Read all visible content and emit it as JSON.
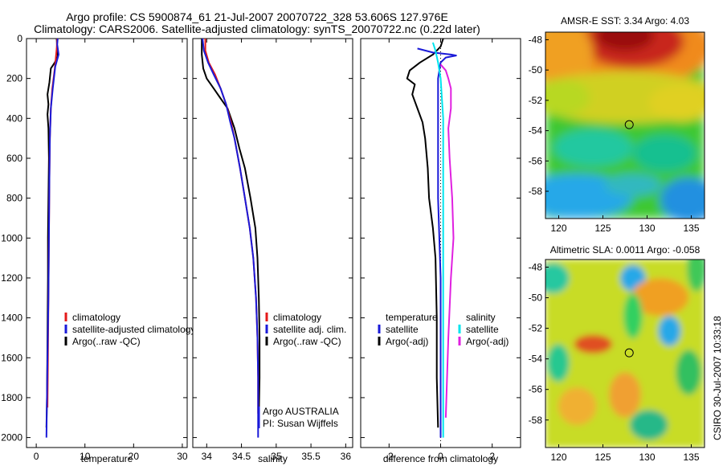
{
  "title": {
    "line1": "Argo profile: CS 5900874_61 21-Jul-2007 20070722_328 53.606S 127.976E",
    "line2": "Climatology: CARS2006. Satellite-adjusted climatology: synTS_20070722.nc (0.22d later)"
  },
  "credit": "CSIRO 30-Jul-2007 10:33:18",
  "chart_data": [
    {
      "type": "line",
      "xlabel": "temperature",
      "ylabel": "",
      "xlim": [
        -2,
        31
      ],
      "ylim": [
        2050,
        0
      ],
      "y_reversed": true,
      "xticks": [
        0,
        10,
        20,
        30
      ],
      "yticks": [
        0,
        200,
        400,
        600,
        800,
        1000,
        1200,
        1400,
        1600,
        1800,
        2000
      ],
      "legend": [
        {
          "label": "climatology",
          "color": "#e41a1a"
        },
        {
          "label": "satellite-adjusted climatology",
          "color": "#1a1ad8"
        },
        {
          "label": "Argo(..raw -QC)",
          "color": "#000000"
        }
      ],
      "legend_position": "lower-right",
      "series": [
        {
          "name": "Argo(..raw -QC)",
          "color": "#000000",
          "points": [
            [
              4.2,
              0
            ],
            [
              4.3,
              50
            ],
            [
              4.4,
              90
            ],
            [
              3.8,
              120
            ],
            [
              3.0,
              150
            ],
            [
              2.7,
              220
            ],
            [
              2.3,
              280
            ],
            [
              2.5,
              330
            ],
            [
              2.3,
              380
            ],
            [
              2.5,
              450
            ],
            [
              2.6,
              600
            ],
            [
              2.5,
              800
            ],
            [
              2.4,
              1000
            ],
            [
              2.4,
              1200
            ],
            [
              2.3,
              1500
            ],
            [
              2.2,
              1800
            ],
            [
              2.1,
              1950
            ]
          ]
        },
        {
          "name": "climatology",
          "color": "#e41a1a",
          "points": [
            [
              4.3,
              0
            ],
            [
              4.2,
              50
            ],
            [
              4.0,
              100
            ],
            [
              3.8,
              150
            ],
            [
              3.3,
              250
            ],
            [
              3.0,
              350
            ],
            [
              2.8,
              500
            ],
            [
              2.7,
              700
            ],
            [
              2.6,
              1000
            ],
            [
              2.5,
              1300
            ],
            [
              2.4,
              1600
            ],
            [
              2.3,
              1850
            ]
          ]
        },
        {
          "name": "satellite-adjusted climatology",
          "color": "#1a1ad8",
          "points": [
            [
              4.4,
              0
            ],
            [
              4.3,
              30
            ],
            [
              4.6,
              80
            ],
            [
              3.9,
              140
            ],
            [
              3.4,
              250
            ],
            [
              3.0,
              350
            ],
            [
              2.8,
              500
            ],
            [
              2.7,
              700
            ],
            [
              2.6,
              1000
            ],
            [
              2.5,
              1300
            ],
            [
              2.3,
              1600
            ],
            [
              2.1,
              2000
            ]
          ]
        }
      ]
    },
    {
      "type": "line",
      "xlabel": "salinity",
      "ylabel": "",
      "xlim": [
        33.8,
        36.1
      ],
      "ylim": [
        2050,
        0
      ],
      "y_reversed": true,
      "xticks": [
        34,
        34.5,
        35,
        35.5,
        36
      ],
      "legend": [
        {
          "label": "climatology",
          "color": "#e41a1a"
        },
        {
          "label": "satellite adj. clim.",
          "color": "#1a1ad8"
        },
        {
          "label": "Argo(..raw -QC)",
          "color": "#000000"
        }
      ],
      "legend_position": "lower-right",
      "annotations": [
        "Argo AUSTRALIA",
        "PI: Susan Wijffels"
      ],
      "series": [
        {
          "name": "Argo(..raw -QC)",
          "color": "#000000",
          "points": [
            [
              33.93,
              0
            ],
            [
              33.93,
              80
            ],
            [
              33.95,
              150
            ],
            [
              34.0,
              200
            ],
            [
              34.1,
              250
            ],
            [
              34.2,
              300
            ],
            [
              34.3,
              350
            ],
            [
              34.35,
              400
            ],
            [
              34.4,
              450
            ],
            [
              34.47,
              550
            ],
            [
              34.55,
              650
            ],
            [
              34.63,
              800
            ],
            [
              34.7,
              950
            ],
            [
              34.73,
              1100
            ],
            [
              34.75,
              1300
            ],
            [
              34.76,
              1500
            ],
            [
              34.76,
              1700
            ],
            [
              34.75,
              1900
            ]
          ]
        },
        {
          "name": "climatology",
          "color": "#e41a1a",
          "points": [
            [
              33.98,
              0
            ],
            [
              33.98,
              60
            ],
            [
              34.03,
              120
            ],
            [
              34.12,
              180
            ],
            [
              34.2,
              250
            ],
            [
              34.28,
              330
            ],
            [
              34.35,
              420
            ],
            [
              34.4,
              500
            ],
            [
              34.48,
              650
            ],
            [
              34.55,
              800
            ],
            [
              34.62,
              950
            ],
            [
              34.67,
              1100
            ],
            [
              34.71,
              1300
            ],
            [
              34.73,
              1500
            ],
            [
              34.74,
              1700
            ],
            [
              34.74,
              1880
            ]
          ]
        },
        {
          "name": "satellite adj. clim.",
          "color": "#1a1ad8",
          "points": [
            [
              33.94,
              0
            ],
            [
              33.96,
              60
            ],
            [
              34.02,
              120
            ],
            [
              34.1,
              180
            ],
            [
              34.2,
              250
            ],
            [
              34.28,
              330
            ],
            [
              34.34,
              420
            ],
            [
              34.4,
              500
            ],
            [
              34.48,
              650
            ],
            [
              34.55,
              800
            ],
            [
              34.62,
              950
            ],
            [
              34.67,
              1100
            ],
            [
              34.71,
              1300
            ],
            [
              34.73,
              1500
            ],
            [
              34.74,
              1700
            ],
            [
              34.74,
              2000
            ]
          ]
        }
      ]
    },
    {
      "type": "line",
      "xlabel": "difference from climatology",
      "ylabel": "",
      "xlim": [
        -3.1,
        3.1
      ],
      "ylim": [
        2050,
        0
      ],
      "y_reversed": true,
      "xticks": [
        -2,
        0,
        2
      ],
      "legend": [
        {
          "label": "temperature",
          "color": ""
        },
        {
          "label": "satellite",
          "color": "#1a1ad8"
        },
        {
          "label": "Argo(-adj)",
          "color": "#000000"
        },
        {
          "label": "salinity",
          "color": ""
        },
        {
          "label": "satellite",
          "color": "#00e5ee"
        },
        {
          "label": "Argo(-adj)",
          "color": "#e020e0"
        }
      ],
      "legend_position": "lower-right",
      "series": [
        {
          "name": "temperature Argo(-adj)",
          "color": "#000000",
          "points": [
            [
              0.1,
              0
            ],
            [
              0.0,
              40
            ],
            [
              -0.3,
              80
            ],
            [
              -0.8,
              120
            ],
            [
              -1.2,
              160
            ],
            [
              -1.3,
              200
            ],
            [
              -1.0,
              230
            ],
            [
              -1.1,
              280
            ],
            [
              -0.9,
              350
            ],
            [
              -0.7,
              420
            ],
            [
              -0.6,
              500
            ],
            [
              -0.5,
              650
            ],
            [
              -0.45,
              800
            ],
            [
              -0.3,
              950
            ],
            [
              -0.2,
              1100
            ],
            [
              -0.15,
              1400
            ],
            [
              -0.15,
              1700
            ],
            [
              -0.1,
              1950
            ]
          ]
        },
        {
          "name": "temperature satellite",
          "color": "#1a1ad8",
          "points": [
            [
              -0.9,
              50
            ],
            [
              -0.3,
              70
            ],
            [
              0.4,
              80
            ],
            [
              0.6,
              85
            ],
            [
              0.2,
              95
            ],
            [
              0.0,
              120
            ],
            [
              -0.1,
              200
            ],
            [
              -0.1,
              400
            ],
            [
              -0.1,
              800
            ],
            [
              0.0,
              1200
            ],
            [
              0.0,
              1600
            ],
            [
              0.0,
              2000
            ]
          ]
        },
        {
          "name": "salinity satellite",
          "color": "#00e5ee",
          "points": [
            [
              -0.3,
              20
            ],
            [
              -0.2,
              60
            ],
            [
              -0.1,
              120
            ],
            [
              0.0,
              200
            ],
            [
              0.1,
              400
            ],
            [
              0.1,
              700
            ],
            [
              0.1,
              1000
            ],
            [
              0.1,
              1400
            ],
            [
              0.1,
              1800
            ],
            [
              0.1,
              2000
            ]
          ]
        },
        {
          "name": "salinity Argo(-adj)",
          "color": "#e020e0",
          "points": [
            [
              0.0,
              130
            ],
            [
              0.2,
              160
            ],
            [
              0.3,
              200
            ],
            [
              0.4,
              250
            ],
            [
              0.4,
              350
            ],
            [
              0.3,
              450
            ],
            [
              0.35,
              600
            ],
            [
              0.45,
              800
            ],
            [
              0.5,
              1000
            ],
            [
              0.4,
              1200
            ],
            [
              0.3,
              1500
            ],
            [
              0.2,
              1900
            ]
          ]
        }
      ]
    },
    {
      "type": "heatmap",
      "title": "AMSR-E SST: 3.34  Argo: 4.03",
      "xlim": [
        118.5,
        136.5
      ],
      "ylim": [
        -59.8,
        -47.5
      ],
      "xticks": [
        120,
        125,
        130,
        135
      ],
      "yticks": [
        -48,
        -50,
        -52,
        -54,
        -56,
        -58
      ],
      "marker": {
        "lon": 127.976,
        "lat": -53.606
      },
      "colormap": "jet"
    },
    {
      "type": "heatmap",
      "title": "Altimetric SLA: 0.0011  Argo: -0.058",
      "xlim": [
        118.5,
        136.5
      ],
      "ylim": [
        -59.8,
        -47.5
      ],
      "xticks": [
        120,
        125,
        130,
        135
      ],
      "yticks": [
        -48,
        -50,
        -52,
        -54,
        -56,
        -58
      ],
      "marker": {
        "lon": 127.976,
        "lat": -53.606
      },
      "colormap": "jet"
    }
  ]
}
